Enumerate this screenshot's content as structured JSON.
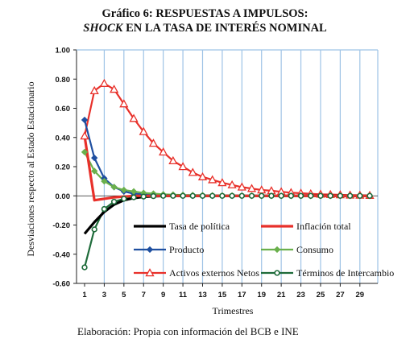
{
  "title": {
    "line1": "Gráfico 6: RESPUESTAS A IMPULSOS:",
    "line2_italic": "SHOCK",
    "line2_rest": " EN LA TASA DE INTERÉS NOMINAL"
  },
  "caption": "Elaboración: Propia con información del BCB e INE",
  "chart_data": {
    "type": "line",
    "xlabel": "Trimestres",
    "ylabel": "Desviaciones respecto al Estado Estacionario",
    "ylim": [
      -0.6,
      1.0
    ],
    "xlim": [
      1,
      30
    ],
    "x_ticks": [
      "1",
      "3",
      "5",
      "7",
      "9",
      "11",
      "13",
      "15",
      "17",
      "19",
      "21",
      "23",
      "25",
      "27",
      "29"
    ],
    "y_ticks": [
      "1.00",
      "0.80",
      "0.60",
      "0.40",
      "0.20",
      "0.00",
      "-0.20",
      "-0.40",
      "-0.60"
    ],
    "grid": "vertical",
    "legend_placement": "inside-bottom",
    "series": [
      {
        "name": "Tasa de política",
        "color": "#000000",
        "marker": "none",
        "x": [
          1,
          2,
          3,
          4,
          5,
          6,
          7,
          8,
          9,
          10,
          11,
          12,
          13,
          14,
          15,
          16,
          17,
          18,
          19,
          20,
          21,
          22,
          23,
          24,
          25,
          26,
          27,
          28,
          29,
          30
        ],
        "y": [
          -0.26,
          -0.18,
          -0.11,
          -0.06,
          -0.03,
          -0.015,
          -0.007,
          -0.003,
          -0.001,
          0,
          0,
          0,
          0,
          0,
          0,
          0,
          0,
          0,
          0,
          0,
          0,
          0,
          0,
          0,
          0,
          0,
          0,
          0,
          0,
          0
        ]
      },
      {
        "name": "Inflación total",
        "color": "#e8302a",
        "marker": "none",
        "x": [
          1,
          2,
          3,
          4,
          5,
          6,
          7,
          8,
          9,
          10,
          11,
          12,
          13,
          14,
          15,
          16,
          17,
          18,
          19,
          20,
          21,
          22,
          23,
          24,
          25,
          26,
          27,
          28,
          29,
          30
        ],
        "y": [
          0.41,
          -0.03,
          -0.02,
          -0.01,
          -0.005,
          0,
          0,
          0,
          0,
          0,
          0,
          0,
          0,
          0,
          0,
          0,
          0,
          0,
          0,
          0,
          0,
          0,
          0,
          0,
          0,
          0,
          0,
          0,
          0,
          0
        ]
      },
      {
        "name": "Producto",
        "color": "#1f4fa0",
        "marker": "diamond",
        "x": [
          1,
          2,
          3,
          4,
          5,
          6,
          7,
          8,
          9,
          10,
          11,
          12,
          13,
          14,
          15,
          16,
          17,
          18,
          19,
          20,
          21,
          22,
          23,
          24,
          25,
          26,
          27,
          28,
          29,
          30
        ],
        "y": [
          0.52,
          0.26,
          0.12,
          0.06,
          0.03,
          0.015,
          0.01,
          0.005,
          0.003,
          0.002,
          0.001,
          0,
          0,
          0,
          0,
          0,
          0,
          0,
          0,
          0,
          0,
          0,
          0,
          0,
          0,
          0,
          0,
          0,
          0,
          0
        ]
      },
      {
        "name": "Consumo",
        "color": "#6ab04c",
        "marker": "diamond",
        "x": [
          1,
          2,
          3,
          4,
          5,
          6,
          7,
          8,
          9,
          10,
          11,
          12,
          13,
          14,
          15,
          16,
          17,
          18,
          19,
          20,
          21,
          22,
          23,
          24,
          25,
          26,
          27,
          28,
          29,
          30
        ],
        "y": [
          0.3,
          0.17,
          0.1,
          0.06,
          0.04,
          0.03,
          0.02,
          0.015,
          0.01,
          0.008,
          0.006,
          0.005,
          0.004,
          0.003,
          0.002,
          0.002,
          0.001,
          0.001,
          0,
          0,
          0,
          0,
          0,
          0,
          0,
          0,
          0,
          0,
          0,
          0
        ]
      },
      {
        "name": "Activos externos Netos",
        "color": "#e8302a",
        "marker": "triangle",
        "x": [
          1,
          2,
          3,
          4,
          5,
          6,
          7,
          8,
          9,
          10,
          11,
          12,
          13,
          14,
          15,
          16,
          17,
          18,
          19,
          20,
          21,
          22,
          23,
          24,
          25,
          26,
          27,
          28,
          29,
          30
        ],
        "y": [
          0.41,
          0.72,
          0.77,
          0.73,
          0.63,
          0.53,
          0.44,
          0.36,
          0.3,
          0.24,
          0.2,
          0.16,
          0.13,
          0.11,
          0.09,
          0.075,
          0.06,
          0.05,
          0.04,
          0.035,
          0.028,
          0.022,
          0.018,
          0.014,
          0.011,
          0.009,
          0.007,
          0.005,
          0.004,
          0.003
        ]
      },
      {
        "name": "Términos de Intercambio",
        "color": "#1e6b3a",
        "marker": "circle",
        "x": [
          1,
          2,
          3,
          4,
          5,
          6,
          7,
          8,
          9,
          10,
          11,
          12,
          13,
          14,
          15,
          16,
          17,
          18,
          19,
          20,
          21,
          22,
          23,
          24,
          25,
          26,
          27,
          28,
          29,
          30
        ],
        "y": [
          -0.49,
          -0.23,
          -0.09,
          -0.04,
          -0.02,
          -0.01,
          -0.005,
          -0.002,
          0,
          0,
          0,
          0,
          0,
          0,
          0,
          0,
          0,
          0,
          0,
          0,
          0,
          0,
          0,
          0,
          0,
          0,
          0,
          0,
          0,
          0
        ]
      }
    ]
  }
}
